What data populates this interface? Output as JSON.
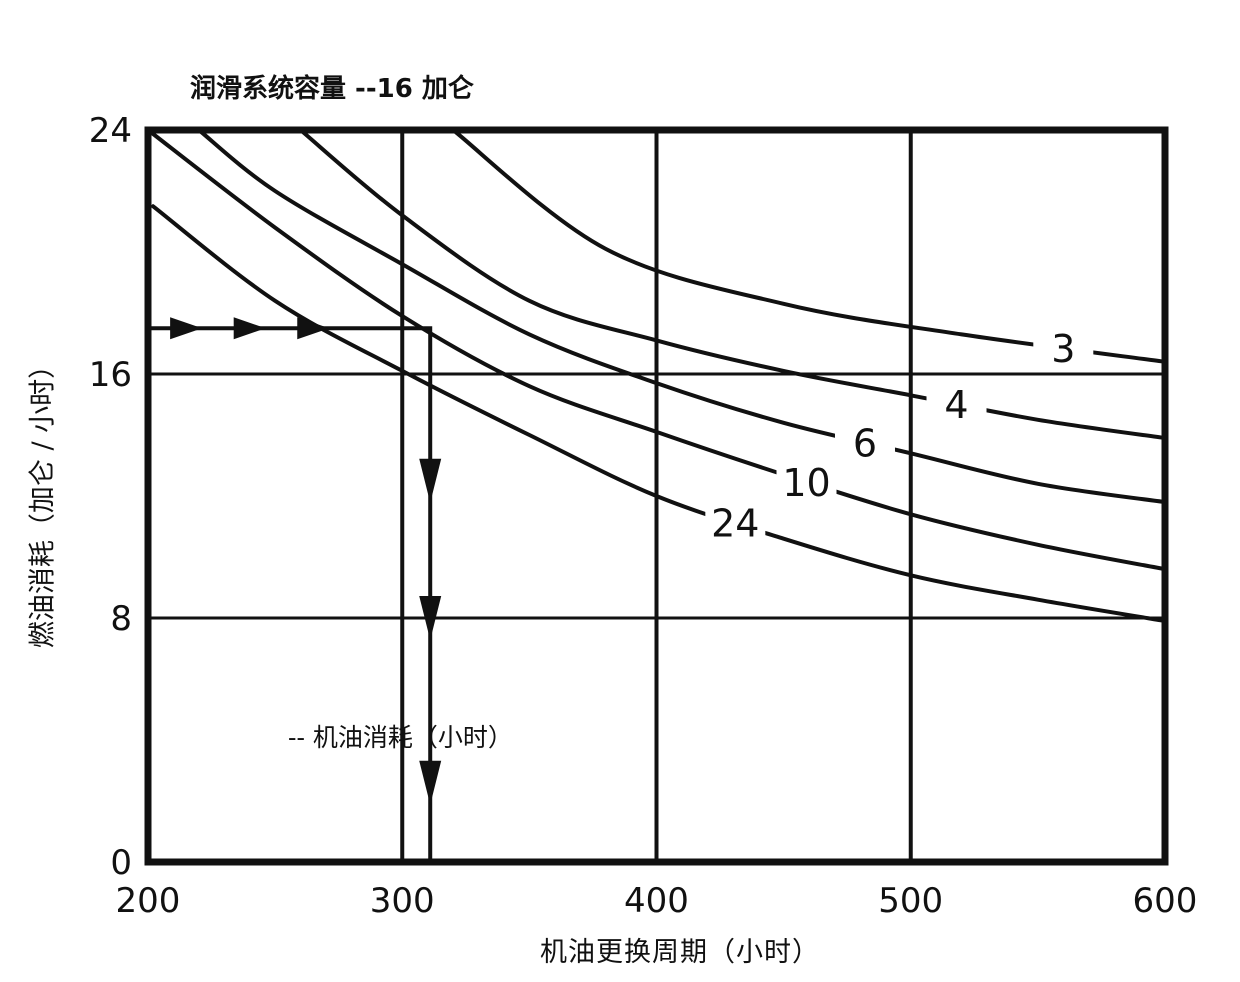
{
  "chart_data": {
    "type": "line",
    "title": "润滑系统容量 --16 加仑",
    "xlabel": "机油更换周期（小时）",
    "ylabel": "燃油消耗（加仑 / 小时）",
    "xlim": [
      200,
      600
    ],
    "ylim": [
      0,
      24
    ],
    "x_ticks": [
      "200",
      "300",
      "400",
      "500",
      "600"
    ],
    "y_ticks": [
      "0",
      "8",
      "16",
      "24"
    ],
    "grid": true,
    "series": [
      {
        "name": "3",
        "x": [
          320,
          380,
          450,
          520,
          600
        ],
        "y": [
          24.0,
          20.1,
          18.3,
          17.3,
          16.4
        ]
      },
      {
        "name": "4",
        "x": [
          260,
          300,
          350,
          400,
          450,
          500,
          550,
          600
        ],
        "y": [
          24.0,
          21.2,
          18.4,
          17.1,
          16.1,
          15.3,
          14.5,
          13.9
        ]
      },
      {
        "name": "6",
        "x": [
          220,
          250,
          300,
          350,
          400,
          450,
          500,
          550,
          600
        ],
        "y": [
          24.0,
          22.0,
          19.6,
          17.3,
          15.7,
          14.4,
          13.4,
          12.4,
          11.8
        ]
      },
      {
        "name": "10",
        "x": [
          200,
          250,
          300,
          350,
          400,
          450,
          500,
          550,
          600
        ],
        "y": [
          24.0,
          20.8,
          17.9,
          15.6,
          14.1,
          12.7,
          11.4,
          10.4,
          9.6
        ]
      },
      {
        "name": "24",
        "x": [
          202,
          250,
          300,
          350,
          400,
          450,
          500,
          550,
          600
        ],
        "y": [
          21.5,
          18.4,
          16.1,
          14.0,
          12.0,
          10.6,
          9.4,
          8.6,
          7.9
        ]
      }
    ],
    "annotation_path": {
      "x": [
        200,
        311,
        311
      ],
      "y": [
        17.5,
        17.5,
        0
      ]
    },
    "annotation_text": "-- 机油消耗（小时）"
  }
}
